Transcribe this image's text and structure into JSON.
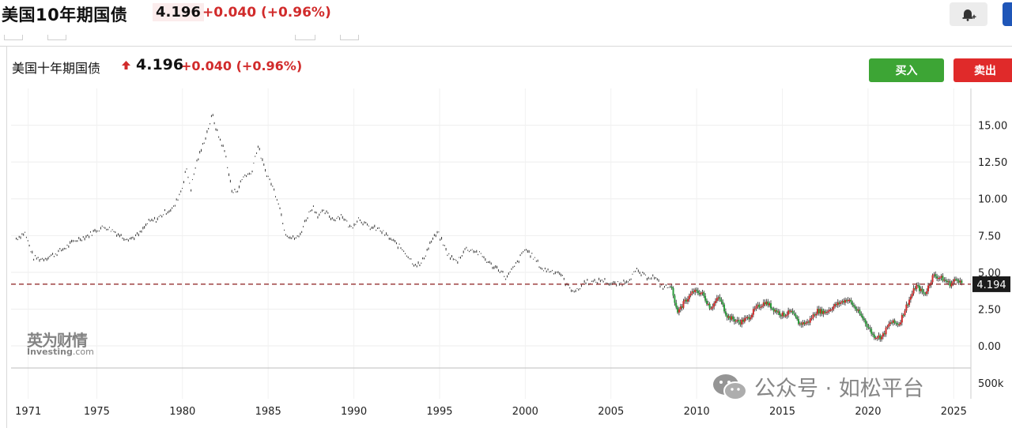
{
  "header": {
    "title": "美国10年期国债",
    "price": "4.196",
    "change": "+0.040",
    "change_pct": "(+0.96%)"
  },
  "chart_header": {
    "title": "美国十年期国债",
    "price": "4.196",
    "change": "+0.040",
    "change_pct": "(+0.96%)"
  },
  "buttons": {
    "buy": "买入",
    "sell": "卖出"
  },
  "branding": {
    "logo_cn": "英为财情",
    "logo_en": "Investing",
    "logo_en_suffix": ".com"
  },
  "watermark": "公众号 · 如松平台",
  "colors": {
    "up": "#d12b2b",
    "down": "#2a9d3a",
    "buy": "#3da535",
    "sell": "#e02a2a",
    "accent": "#1f56b8"
  },
  "icons": {
    "alert": "bell-plus-icon",
    "price_up": "arrow-up-icon",
    "watermark": "wechat-icon"
  },
  "chart_data": {
    "type": "line",
    "title": "美国十年期国债",
    "x_tick_labels": [
      "1971",
      "1975",
      "1980",
      "1985",
      "1990",
      "1995",
      "2000",
      "2005",
      "2010",
      "2015",
      "2020",
      "2025"
    ],
    "y_tick_labels": [
      "0.00",
      "2.50",
      "5.00",
      "7.50",
      "10.00",
      "12.50",
      "15.00"
    ],
    "volume_tick_label": "500k",
    "xlim": [
      1970,
      2026
    ],
    "ylim": [
      -1.5,
      17.5
    ],
    "current_value": 4.194,
    "current_value_label": "4.194",
    "series": [
      {
        "x": [
          1970.3,
          1970.8,
          1971.3,
          1971.8,
          1972.5,
          1973.2,
          1973.8,
          1974.5,
          1975.0,
          1975.5,
          1976.0,
          1976.5,
          1977.0,
          1977.5,
          1978.0,
          1978.5,
          1979.0,
          1979.5,
          1980.0,
          1980.2,
          1980.5,
          1980.8,
          1981.0,
          1981.4,
          1981.75,
          1982.0,
          1982.5,
          1982.9,
          1983.2,
          1983.6,
          1984.0,
          1984.4,
          1984.8,
          1985.2,
          1985.6,
          1986.0,
          1986.4,
          1986.8,
          1987.2,
          1987.6,
          1987.9,
          1988.3,
          1988.8,
          1989.3,
          1989.8,
          1990.3,
          1990.8,
          1991.5,
          1992.2,
          1992.9,
          1993.5,
          1993.9,
          1994.5,
          1994.9,
          1995.5,
          1996.0,
          1996.5,
          1997.0,
          1997.5,
          1998.0,
          1998.5,
          1998.9,
          1999.5,
          2000.0,
          2000.5,
          2001.0,
          2001.5,
          2002.0,
          2002.5,
          2003.0,
          2003.5,
          2004.0,
          2004.5,
          2005.0,
          2005.5,
          2006.0,
          2006.5,
          2007.0,
          2007.5,
          2008.0,
          2008.5,
          2008.9,
          2009.3,
          2009.8,
          2010.3,
          2010.8,
          2011.3,
          2011.8,
          2012.5,
          2013.0,
          2013.5,
          2014.0,
          2014.5,
          2015.0,
          2015.5,
          2016.0,
          2016.5,
          2017.0,
          2017.5,
          2018.0,
          2018.8,
          2019.3,
          2019.8,
          2020.3,
          2020.8,
          2021.3,
          2021.8,
          2022.3,
          2022.8,
          2023.3,
          2023.8,
          2024.3,
          2024.8,
          2025.2,
          2025.5
        ],
        "values": [
          7.3,
          7.7,
          6.0,
          5.9,
          6.2,
          6.7,
          7.2,
          7.5,
          7.9,
          8.1,
          7.8,
          7.4,
          7.3,
          7.6,
          8.4,
          8.6,
          9.1,
          9.4,
          10.8,
          12.1,
          10.7,
          12.4,
          13.0,
          14.4,
          15.7,
          14.6,
          13.1,
          10.4,
          10.6,
          11.6,
          11.7,
          13.6,
          12.0,
          11.0,
          9.8,
          7.7,
          7.3,
          7.4,
          8.6,
          9.5,
          8.9,
          9.1,
          8.6,
          8.9,
          8.0,
          8.7,
          8.1,
          7.9,
          7.2,
          6.5,
          5.6,
          5.5,
          7.1,
          7.7,
          6.2,
          5.7,
          6.6,
          6.5,
          6.1,
          5.5,
          5.2,
          4.6,
          5.6,
          6.6,
          6.0,
          5.2,
          5.1,
          5.0,
          4.0,
          3.7,
          4.4,
          4.3,
          4.5,
          4.2,
          4.2,
          4.5,
          5.1,
          4.7,
          4.7,
          4.0,
          4.0,
          2.3,
          3.0,
          3.7,
          3.6,
          2.6,
          3.3,
          2.0,
          1.6,
          1.9,
          2.6,
          3.0,
          2.5,
          2.1,
          2.3,
          1.5,
          1.6,
          2.4,
          2.3,
          2.7,
          3.2,
          2.5,
          1.7,
          0.7,
          0.6,
          1.6,
          1.5,
          2.9,
          4.1,
          3.5,
          4.8,
          4.6,
          4.2,
          4.6,
          4.2
        ]
      }
    ],
    "grid": true,
    "candlestick_style_from": 2008.5
  }
}
